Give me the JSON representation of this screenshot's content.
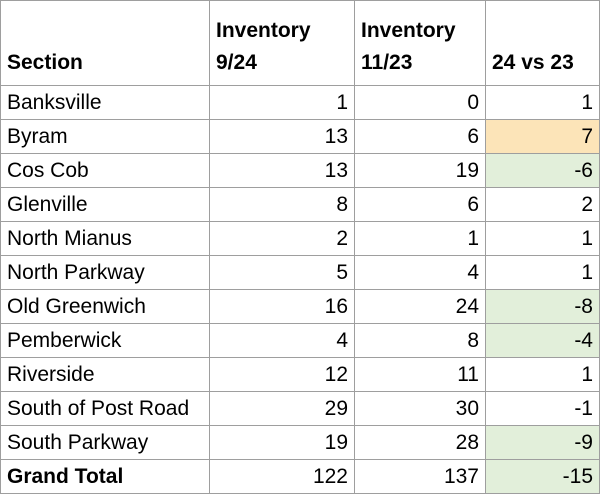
{
  "table": {
    "headers": {
      "section": "Section",
      "inv24_line1": "Inventory",
      "inv24_line2": "9/24",
      "inv23_line1": "Inventory",
      "inv23_line2": "11/23",
      "diff": "24 vs 23"
    },
    "rows": [
      {
        "section": "Banksville",
        "inv24": "1",
        "inv23": "0",
        "diff": "1",
        "highlight": "none"
      },
      {
        "section": "Byram",
        "inv24": "13",
        "inv23": "6",
        "diff": "7",
        "highlight": "positive-high"
      },
      {
        "section": "Cos Cob",
        "inv24": "13",
        "inv23": "19",
        "diff": "-6",
        "highlight": "negative"
      },
      {
        "section": "Glenville",
        "inv24": "8",
        "inv23": "6",
        "diff": "2",
        "highlight": "none"
      },
      {
        "section": "North Mianus",
        "inv24": "2",
        "inv23": "1",
        "diff": "1",
        "highlight": "none"
      },
      {
        "section": "North Parkway",
        "inv24": "5",
        "inv23": "4",
        "diff": "1",
        "highlight": "none"
      },
      {
        "section": "Old Greenwich",
        "inv24": "16",
        "inv23": "24",
        "diff": "-8",
        "highlight": "negative"
      },
      {
        "section": "Pemberwick",
        "inv24": "4",
        "inv23": "8",
        "diff": "-4",
        "highlight": "negative"
      },
      {
        "section": "Riverside",
        "inv24": "12",
        "inv23": "11",
        "diff": "1",
        "highlight": "none"
      },
      {
        "section": "South of Post Road",
        "inv24": "29",
        "inv23": "30",
        "diff": "-1",
        "highlight": "none"
      },
      {
        "section": "South Parkway",
        "inv24": "19",
        "inv23": "28",
        "diff": "-9",
        "highlight": "negative"
      }
    ],
    "total": {
      "section": "Grand Total",
      "inv24": "122",
      "inv23": "137",
      "diff": "-15",
      "highlight": "negative"
    }
  },
  "colors": {
    "positive_high_fill": "#fce4b8",
    "negative_fill": "#e2efda",
    "grid_border": "#9e9e9e"
  }
}
